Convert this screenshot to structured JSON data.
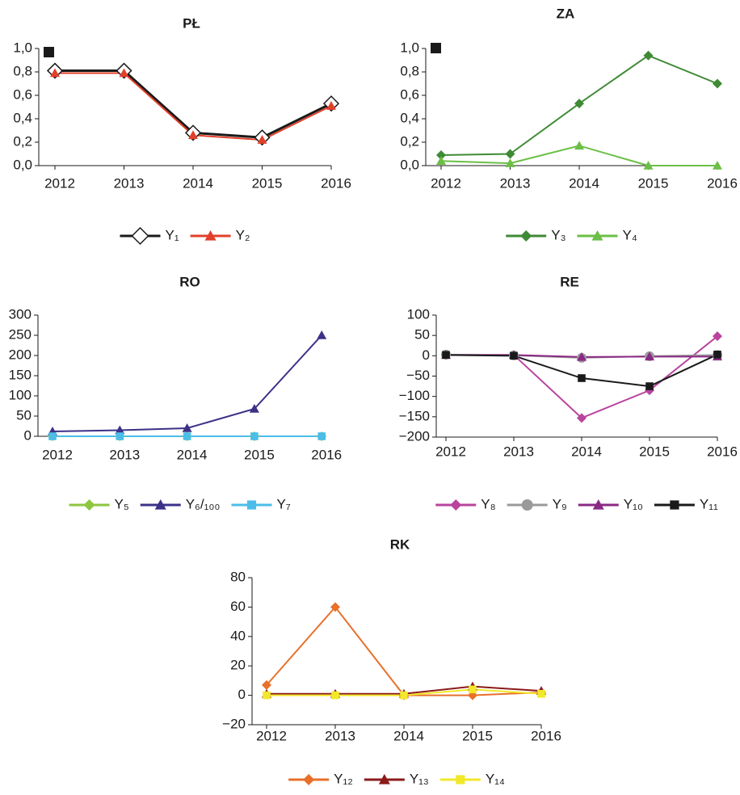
{
  "chart_data": [
    {
      "type": "line",
      "title": "PŁ",
      "categories": [
        "2012",
        "2013",
        "2014",
        "2015",
        "2016"
      ],
      "ylim": [
        0,
        1
      ],
      "yticks": [
        {
          "value": 0,
          "label": "0,0"
        },
        {
          "value": 0.2,
          "label": "0,2"
        },
        {
          "value": 0.4,
          "label": "0,4"
        },
        {
          "value": 0.6,
          "label": "0,6"
        },
        {
          "value": 0.8,
          "label": "0,8"
        },
        {
          "value": 1,
          "label": "1,0"
        }
      ],
      "series": [
        {
          "name": "Y₁",
          "color": "#1a1a1a",
          "marker": "diamond",
          "marker_fill": "#ffffff",
          "values": [
            0.81,
            0.81,
            0.28,
            0.24,
            0.53
          ]
        },
        {
          "name": "Y₂",
          "color": "#e2402a",
          "marker": "triangle",
          "values": [
            0.79,
            0.79,
            0.26,
            0.22,
            0.51
          ]
        }
      ]
    },
    {
      "type": "line",
      "title": "ZA",
      "categories": [
        "2012",
        "2013",
        "2014",
        "2015",
        "2016"
      ],
      "ylim": [
        0,
        1
      ],
      "yticks": [
        {
          "value": 0,
          "label": "0,0"
        },
        {
          "value": 0.2,
          "label": "0,2"
        },
        {
          "value": 0.4,
          "label": "0,4"
        },
        {
          "value": 0.6,
          "label": "0,6"
        },
        {
          "value": 0.8,
          "label": "0,8"
        },
        {
          "value": 1,
          "label": "1,0"
        }
      ],
      "series": [
        {
          "name": "Y₃",
          "color": "#3f8a35",
          "marker": "diamond",
          "values": [
            0.09,
            0.1,
            0.53,
            0.94,
            0.7
          ]
        },
        {
          "name": "Y₄",
          "color": "#6cbf46",
          "marker": "triangle",
          "values": [
            0.04,
            0.02,
            0.17,
            0,
            0
          ]
        }
      ]
    },
    {
      "type": "line",
      "title": "RO",
      "categories": [
        "2012",
        "2013",
        "2014",
        "2015",
        "2016"
      ],
      "ylim": [
        0,
        300
      ],
      "yticks": [
        0,
        50,
        100,
        150,
        200,
        250,
        300
      ],
      "series": [
        {
          "name": "Y₅",
          "color": "#8dc63f",
          "marker": "diamond",
          "values": [
            0,
            0,
            0,
            0,
            0
          ]
        },
        {
          "name": "Y₆/₁₀₀",
          "color": "#3b3187",
          "marker": "triangle",
          "values": [
            12,
            15,
            20,
            68,
            250
          ]
        },
        {
          "name": "Y₇",
          "color": "#4bbde8",
          "marker": "square",
          "values": [
            0,
            0,
            0,
            0,
            0
          ]
        }
      ]
    },
    {
      "type": "line",
      "title": "RE",
      "categories": [
        "2012",
        "2013",
        "2014",
        "2015",
        "2016"
      ],
      "ylim": [
        -200,
        100
      ],
      "yticks": [
        {
          "value": -200,
          "label": "−200"
        },
        {
          "value": -150,
          "label": "−150"
        },
        {
          "value": -100,
          "label": "−100"
        },
        {
          "value": -50,
          "label": "−50"
        },
        0,
        50,
        100
      ],
      "series": [
        {
          "name": "Y₈",
          "color": "#b8449e",
          "marker": "diamond",
          "values": [
            2,
            2,
            -153,
            -85,
            48
          ]
        },
        {
          "name": "Y₉",
          "color": "#9a9a9a",
          "marker": "circle",
          "values": [
            3,
            1,
            -5,
            -1,
            2
          ]
        },
        {
          "name": "Y₁₀",
          "color": "#8a2a84",
          "marker": "triangle",
          "values": [
            2,
            2,
            -3,
            -2,
            -2
          ]
        },
        {
          "name": "Y₁₁",
          "color": "#1a1a1a",
          "marker": "square",
          "values": [
            2,
            0,
            -55,
            -75,
            3
          ]
        }
      ]
    },
    {
      "type": "line",
      "title": "RK",
      "categories": [
        "2012",
        "2013",
        "2014",
        "2015",
        "2016"
      ],
      "ylim": [
        -20,
        80
      ],
      "yticks": [
        {
          "value": -20,
          "label": "−20"
        },
        0,
        20,
        40,
        60,
        80
      ],
      "series": [
        {
          "name": "Y₁₂",
          "color": "#e8702a",
          "marker": "diamond",
          "values": [
            7,
            60,
            0,
            0,
            2
          ]
        },
        {
          "name": "Y₁₃",
          "color": "#8b1a1a",
          "marker": "triangle",
          "values": [
            1,
            1,
            1,
            6,
            3
          ]
        },
        {
          "name": "Y₁₄",
          "color": "#f2e82a",
          "marker": "square",
          "values": [
            0,
            0,
            0,
            4,
            1
          ]
        }
      ]
    }
  ]
}
